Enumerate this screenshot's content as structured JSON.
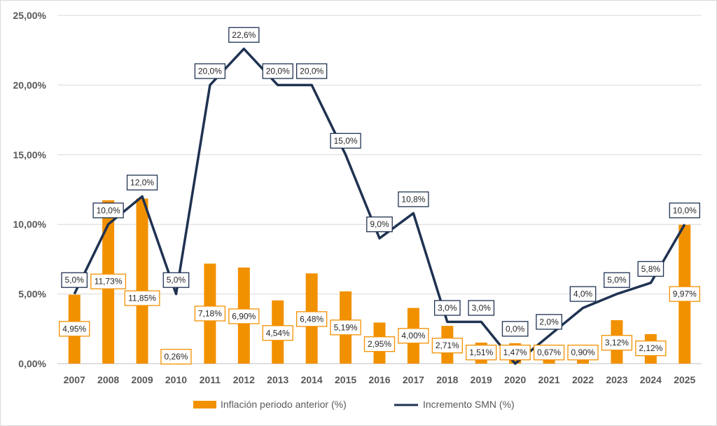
{
  "chart_data": {
    "type": "bar",
    "title": "",
    "xlabel": "",
    "ylabel": "",
    "categories": [
      "2007",
      "2008",
      "2009",
      "2010",
      "2011",
      "2012",
      "2013",
      "2014",
      "2015",
      "2016",
      "2017",
      "2018",
      "2019",
      "2020",
      "2021",
      "2022",
      "2023",
      "2024",
      "2025"
    ],
    "ylim": [
      0,
      25
    ],
    "yticks": [
      0,
      5,
      10,
      15,
      20,
      25
    ],
    "ytick_labels": [
      "0,00%",
      "5,00%",
      "10,00%",
      "15,00%",
      "20,00%",
      "25,00%"
    ],
    "grid": true,
    "legend_position": "bottom",
    "series": [
      {
        "name": "Inflación periodo anterior (%)",
        "type": "bar",
        "color": "#F29100",
        "values": [
          4.95,
          11.73,
          11.85,
          0.26,
          7.18,
          6.9,
          4.54,
          6.48,
          5.19,
          2.95,
          4.0,
          2.71,
          1.51,
          1.47,
          0.67,
          0.9,
          3.12,
          2.12,
          9.97
        ],
        "labels": [
          "4,95%",
          "11,73%",
          "11,85%",
          "0,26%",
          "7,18%",
          "6,90%",
          "4,54%",
          "6,48%",
          "5,19%",
          "2,95%",
          "4,00%",
          "2,71%",
          "1,51%",
          "1,47%",
          "0,67%",
          "0,90%",
          "3,12%",
          "2,12%",
          "9,97%"
        ],
        "label_values": [
          2.5,
          5.9,
          4.7,
          0.5,
          3.6,
          3.4,
          2.2,
          3.2,
          2.6,
          1.4,
          2.0,
          1.3,
          0.8,
          0.8,
          0.8,
          0.8,
          1.5,
          1.1,
          5.0
        ]
      },
      {
        "name": "Incremento SMN (%)",
        "type": "line",
        "color": "#1F3251",
        "values": [
          5.0,
          10.0,
          12.0,
          5.0,
          20.0,
          22.6,
          20.0,
          20.0,
          15.0,
          9.0,
          10.8,
          3.0,
          3.0,
          0.0,
          2.0,
          4.0,
          5.0,
          5.8,
          10.0
        ],
        "labels": [
          "5,0%",
          "10,0%",
          "12,0%",
          "5,0%",
          "20,0%",
          "22,6%",
          "20,0%",
          "20,0%",
          "15,0%",
          "9,0%",
          "10,8%",
          "3,0%",
          "3,0%",
          "0,0%",
          "2,0%",
          "4,0%",
          "5,0%",
          "5,8%",
          "10,0%"
        ],
        "label_values": [
          6.0,
          11.0,
          13.0,
          6.0,
          21.0,
          23.6,
          21.0,
          21.0,
          16.0,
          10.0,
          11.8,
          4.0,
          4.0,
          2.5,
          3.0,
          5.0,
          6.0,
          6.8,
          11.0
        ]
      }
    ]
  }
}
